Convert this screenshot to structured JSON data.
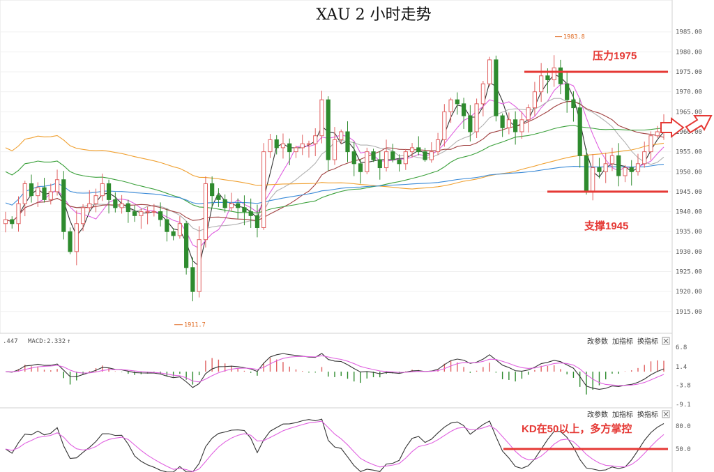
{
  "chart_data": {
    "type": "candlestick",
    "title": "XAU 2 小时走势",
    "price_axis": {
      "range": [
        1911,
        1988
      ],
      "ticks": [
        "1985.00",
        "1980.00",
        "1975.00",
        "1970.00",
        "1965.00",
        "1960.00",
        "1955.00",
        "1950.00",
        "1945.00",
        "1940.00",
        "1935.00",
        "1930.00",
        "1925.00",
        "1920.00",
        "1915.00"
      ]
    },
    "annotations": {
      "resistance_label": "压力1975",
      "resistance_value": 1975,
      "support_label": "支撑1945",
      "support_value": 1945,
      "high_label": "1983.8",
      "high_value": 1983.8,
      "low_label": "1911.7",
      "low_value": 1911.7,
      "kd_note": "KD在50以上，多方掌控",
      "kd_note_value": 50
    },
    "colors": {
      "up": "#e06060",
      "down": "#2e8b2e",
      "ma_black": "#333333",
      "ma_magenta": "#e060e0",
      "ma_gray": "#b0b0b0",
      "ma_brown": "#a04040",
      "ma_green": "#3aa03a",
      "ma_orange": "#f0a030",
      "ma_blue": "#3a8ad8",
      "annotation": "#e53935"
    },
    "macd": {
      "label_prefix": ".447",
      "label": "MACD:2.332",
      "ticks": [
        "6.8",
        "1.4",
        "-3.8",
        "-9.1"
      ],
      "range": [
        -9.1,
        6.8
      ]
    },
    "kd": {
      "ticks": [
        "80.0",
        "50.0"
      ],
      "range": [
        20,
        90
      ]
    },
    "controls": [
      "改参数",
      "加指标",
      "换指标"
    ],
    "close_series": [
      1938,
      1937,
      1942,
      1947,
      1944,
      1946,
      1943,
      1945,
      1948,
      1935,
      1930,
      1937,
      1941,
      1942,
      1944,
      1947,
      1943,
      1941,
      1942,
      1940,
      1939,
      1940,
      1940,
      1940,
      1938,
      1935,
      1934,
      1937,
      1926,
      1920,
      1933,
      1947,
      1944,
      1943,
      1941,
      1942,
      1941,
      1940,
      1939,
      1936,
      1955,
      1958,
      1956,
      1957,
      1955,
      1956,
      1957,
      1957,
      1959,
      1968,
      1953,
      1958,
      1960,
      1955,
      1952,
      1950,
      1955,
      1953,
      1951,
      1955,
      1953,
      1952,
      1955,
      1956,
      1955,
      1953,
      1955,
      1958,
      1965,
      1968,
      1967,
      1964,
      1960,
      1967,
      1972,
      1978,
      1964,
      1961,
      1963,
      1960,
      1963,
      1966,
      1970,
      1974,
      1973,
      1976,
      1972,
      1968,
      1966,
      1954,
      1945,
      1951,
      1950,
      1952,
      1954,
      1949,
      1951,
      1950,
      1952,
      1955,
      1959,
      1960,
      1961
    ]
  }
}
